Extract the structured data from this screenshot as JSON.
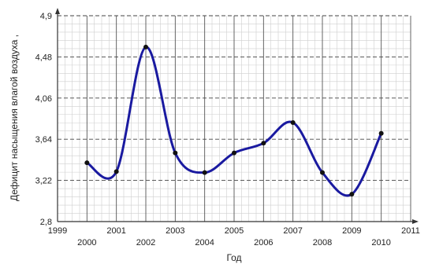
{
  "chart_data": {
    "type": "line",
    "title": "",
    "xlabel": "Год",
    "ylabel": "Дефицит насыщения влагой воздуха ,",
    "xlim": [
      1999,
      2011
    ],
    "ylim": [
      2.8,
      4.9
    ],
    "grid": true,
    "x_ticks_lower": [
      "2000",
      "2002",
      "2004",
      "2006",
      "2008",
      "2010"
    ],
    "x_ticks_upper": [
      "1999",
      "2001",
      "2003",
      "2005",
      "2007",
      "2009",
      "2011"
    ],
    "y_ticks": [
      "2,8",
      "3,22",
      "3,64",
      "4,06",
      "4,48",
      "4,9"
    ],
    "series": [
      {
        "x": [
          2000,
          2001,
          2002,
          2003,
          2004,
          2005,
          2006,
          2007,
          2008,
          2009,
          2010
        ],
        "values": [
          3.4,
          3.31,
          4.58,
          3.5,
          3.3,
          3.5,
          3.6,
          3.81,
          3.3,
          3.08,
          3.7
        ],
        "color": "#1a1aa0"
      }
    ]
  }
}
